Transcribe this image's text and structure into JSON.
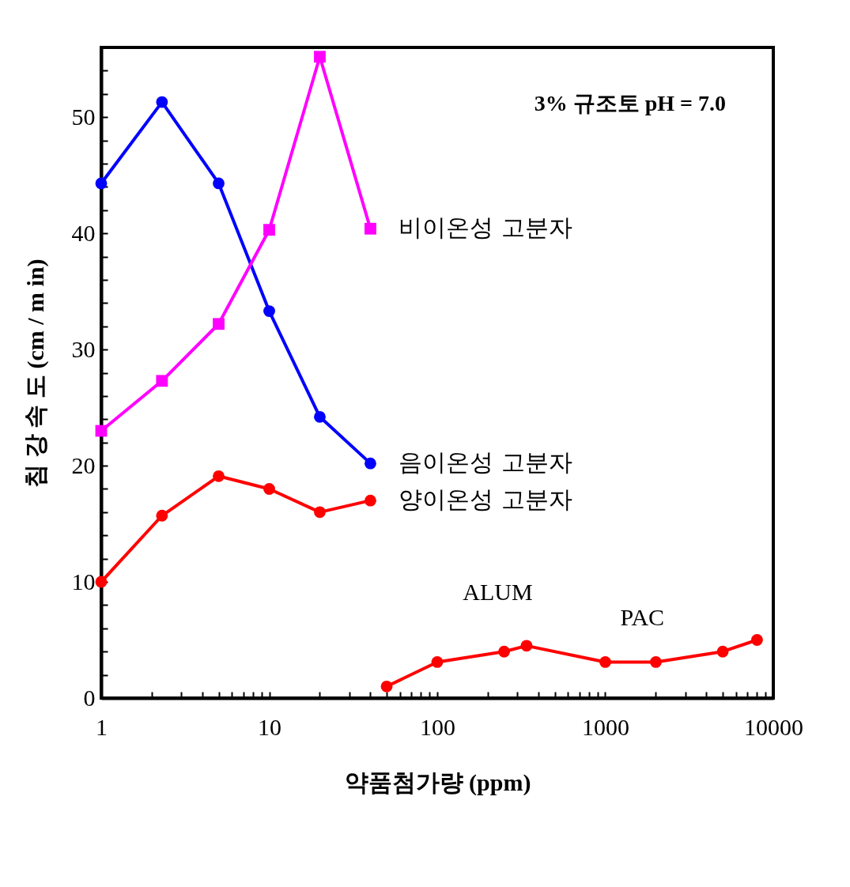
{
  "chart_data": {
    "type": "line",
    "xlabel": "약품첨가량 (ppm)",
    "ylabel": "침 강 속 도 (cm / m in)",
    "log": "x",
    "xlim": [
      1,
      10000
    ],
    "ylim": [
      0,
      56
    ],
    "xticks": [
      1,
      {
        "value": 2,
        "label": null
      },
      {
        "value": 3,
        "label": null
      },
      {
        "value": 4,
        "label": null
      },
      {
        "value": 5,
        "label": null
      },
      {
        "value": 6,
        "label": null
      },
      {
        "value": 7,
        "label": null
      },
      {
        "value": 8,
        "label": null
      },
      {
        "value": 9,
        "label": null
      },
      10,
      {
        "value": 20,
        "label": null
      },
      {
        "value": 30,
        "label": null
      },
      {
        "value": 40,
        "label": null
      },
      {
        "value": 50,
        "label": null
      },
      {
        "value": 60,
        "label": null
      },
      {
        "value": 70,
        "label": null
      },
      {
        "value": 80,
        "label": null
      },
      {
        "value": 90,
        "label": null
      },
      100,
      {
        "value": 200,
        "label": null
      },
      {
        "value": 300,
        "label": null
      },
      {
        "value": 400,
        "label": null
      },
      {
        "value": 500,
        "label": null
      },
      {
        "value": 600,
        "label": null
      },
      {
        "value": 700,
        "label": null
      },
      {
        "value": 800,
        "label": null
      },
      {
        "value": 900,
        "label": null
      },
      1000,
      {
        "value": 2000,
        "label": null
      },
      {
        "value": 3000,
        "label": null
      },
      {
        "value": 4000,
        "label": null
      },
      {
        "value": 5000,
        "label": null
      },
      {
        "value": 6000,
        "label": null
      },
      {
        "value": 7000,
        "label": null
      },
      {
        "value": 8000,
        "label": null
      },
      {
        "value": 9000,
        "label": null
      },
      10000
    ],
    "yticks": [
      0,
      {
        "value": 2,
        "label": null
      },
      {
        "value": 4,
        "label": null
      },
      {
        "value": 6,
        "label": null
      },
      {
        "value": 8,
        "label": null
      },
      10,
      {
        "value": 12,
        "label": null
      },
      {
        "value": 14,
        "label": null
      },
      {
        "value": 16,
        "label": null
      },
      {
        "value": 18,
        "label": null
      },
      20,
      {
        "value": 22,
        "label": null
      },
      {
        "value": 24,
        "label": null
      },
      {
        "value": 26,
        "label": null
      },
      {
        "value": 28,
        "label": null
      },
      30,
      {
        "value": 32,
        "label": null
      },
      {
        "value": 34,
        "label": null
      },
      {
        "value": 36,
        "label": null
      },
      {
        "value": 38,
        "label": null
      },
      40,
      {
        "value": 42,
        "label": null
      },
      {
        "value": 44,
        "label": null
      },
      {
        "value": 46,
        "label": null
      },
      {
        "value": 48,
        "label": null
      },
      50,
      {
        "value": 52,
        "label": null
      },
      {
        "value": 54,
        "label": null
      }
    ],
    "series": [
      {
        "name": "음이온성 고분자",
        "color": "#0000ff",
        "marker": "circle",
        "x": [
          1,
          2.3,
          5,
          10,
          20,
          40
        ],
        "values": [
          44.3,
          51.3,
          44.3,
          33.3,
          24.2,
          20.2
        ]
      },
      {
        "name": "비이온성 고분자",
        "color": "#ff00ff",
        "marker": "square",
        "x": [
          1,
          2.3,
          5,
          10,
          20,
          40
        ],
        "values": [
          23.0,
          27.3,
          32.2,
          40.3,
          55.2,
          40.4
        ]
      },
      {
        "name": "양이온성 고분자",
        "color": "#ff0000",
        "marker": "circle",
        "x": [
          1,
          2.3,
          5,
          10,
          20,
          40
        ],
        "values": [
          10.0,
          15.7,
          19.1,
          18.0,
          16.0,
          17.0
        ]
      },
      {
        "color": "#ff0000",
        "marker": "circle",
        "x": [
          50,
          100,
          250,
          340,
          1000,
          2000,
          5000,
          8000
        ],
        "values": [
          1.0,
          3.1,
          4.0,
          4.5,
          3.1,
          3.1,
          4.0,
          5.0
        ]
      }
    ],
    "annotations": [
      "3% 규조토 pH = 7.0",
      "ALUM",
      "PAC"
    ]
  }
}
